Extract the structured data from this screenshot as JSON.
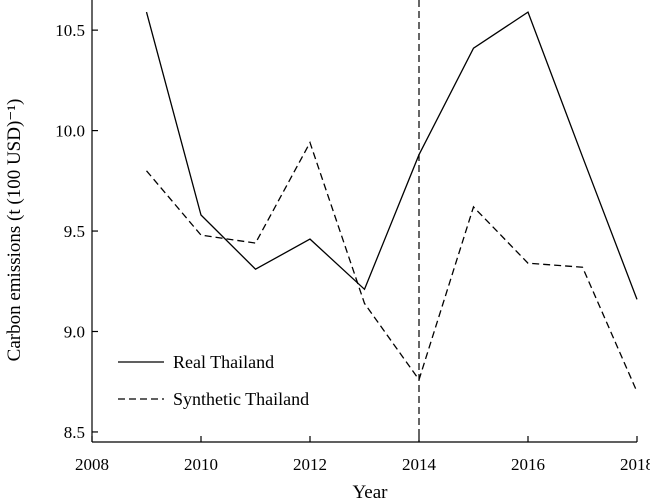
{
  "chart_data": {
    "type": "line",
    "xlabel": "Year",
    "ylabel": "Carbon emissions (t (100 USD)⁻¹)",
    "xlim": [
      2008,
      2018
    ],
    "ylim": [
      8.45,
      10.65
    ],
    "xticks": [
      2008,
      2010,
      2012,
      2014,
      2016,
      2018
    ],
    "yticks": [
      8.5,
      9.0,
      9.5,
      10.0,
      10.5
    ],
    "xtick_labels": [
      "2008",
      "2010",
      "2012",
      "2014",
      "2016",
      "2018"
    ],
    "ytick_labels": [
      "8.5",
      "9.0",
      "9.5",
      "10.0",
      "10.5"
    ],
    "grid": false,
    "legend_position": "bottom-left",
    "intervention_x": 2014,
    "series": [
      {
        "name": "Real Thailand",
        "style": "solid",
        "color": "#000000",
        "x": [
          2009,
          2010,
          2011,
          2012,
          2013,
          2014,
          2015,
          2016,
          2017,
          2018
        ],
        "y": [
          10.59,
          9.58,
          9.31,
          9.46,
          9.21,
          9.88,
          10.41,
          10.59,
          9.87,
          9.16
        ]
      },
      {
        "name": "Synthetic Thailand",
        "style": "dashed",
        "color": "#000000",
        "x": [
          2009,
          2010,
          2011,
          2012,
          2013,
          2014,
          2015,
          2016,
          2017,
          2018
        ],
        "y": [
          9.8,
          9.48,
          9.44,
          9.94,
          9.14,
          8.76,
          9.62,
          9.34,
          9.32,
          8.7
        ]
      }
    ]
  }
}
